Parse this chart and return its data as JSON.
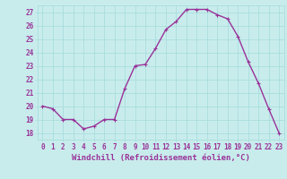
{
  "x": [
    0,
    1,
    2,
    3,
    4,
    5,
    6,
    7,
    8,
    9,
    10,
    11,
    12,
    13,
    14,
    15,
    16,
    17,
    18,
    19,
    20,
    21,
    22,
    23
  ],
  "y": [
    20.0,
    19.8,
    19.0,
    19.0,
    18.3,
    18.5,
    19.0,
    19.0,
    21.3,
    23.0,
    23.1,
    24.3,
    25.7,
    26.3,
    27.2,
    27.2,
    27.2,
    26.8,
    26.5,
    25.2,
    23.3,
    21.7,
    19.8,
    18.0
  ],
  "line_color": "#993399",
  "marker": "+",
  "bg_color": "#c8ecec",
  "grid_color": "#aadddd",
  "axis_color": "#993399",
  "xlabel": "Windchill (Refroidissement éolien,°C)",
  "ylim": [
    17.5,
    27.5
  ],
  "xlim": [
    -0.5,
    23.5
  ],
  "yticks": [
    18,
    19,
    20,
    21,
    22,
    23,
    24,
    25,
    26,
    27
  ],
  "xticks": [
    0,
    1,
    2,
    3,
    4,
    5,
    6,
    7,
    8,
    9,
    10,
    11,
    12,
    13,
    14,
    15,
    16,
    17,
    18,
    19,
    20,
    21,
    22,
    23
  ],
  "tick_fontsize": 5.5,
  "label_fontsize": 6.5,
  "line_width": 1.0,
  "marker_size": 3.5
}
